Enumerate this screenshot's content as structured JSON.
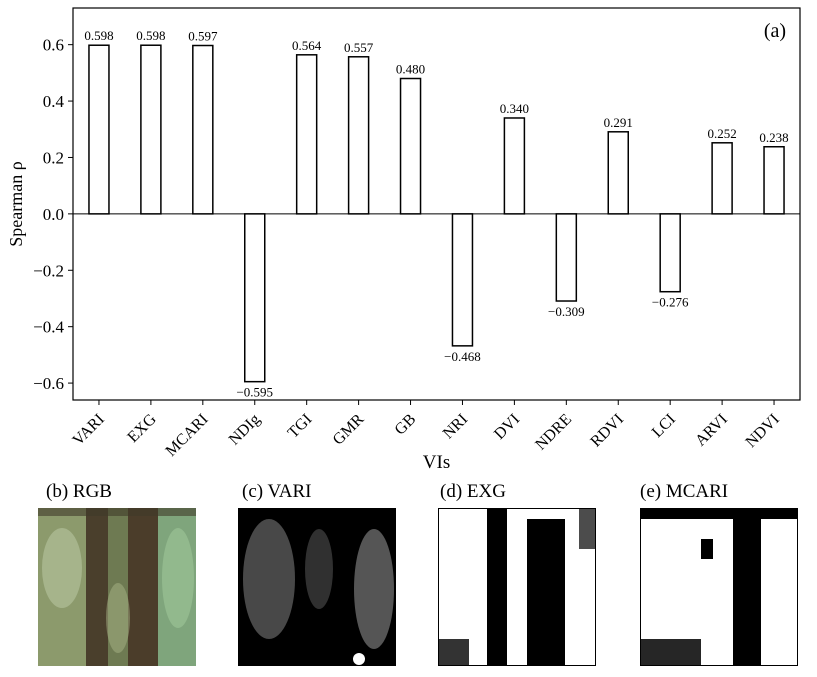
{
  "chart_data": {
    "type": "bar",
    "panel_label": "(a)",
    "xlabel": "VIs",
    "ylabel": "Spearman ρ",
    "ylim": [
      -0.66,
      0.73
    ],
    "yticks": [
      -0.6,
      -0.4,
      -0.2,
      0.0,
      0.2,
      0.4,
      0.6
    ],
    "ytick_labels": [
      "−0.6",
      "−0.4",
      "−0.2",
      "0.0",
      "0.2",
      "0.4",
      "0.6"
    ],
    "categories": [
      "VARI",
      "EXG",
      "MCARI",
      "NDIg",
      "TGI",
      "GMR",
      "GB",
      "NRI",
      "DVI",
      "NDRE",
      "RDVI",
      "LCI",
      "ARVI",
      "NDVI"
    ],
    "values": [
      0.598,
      0.598,
      0.597,
      -0.595,
      0.564,
      0.557,
      0.48,
      -0.468,
      0.34,
      -0.309,
      0.291,
      -0.276,
      0.252,
      0.238
    ],
    "value_labels": [
      "0.598",
      "0.598",
      "0.597",
      "−0.595",
      "0.564",
      "0.557",
      "0.480",
      "−0.468",
      "0.340",
      "−0.309",
      "0.291",
      "−0.276",
      "0.252",
      "0.238"
    ],
    "bar_fill": "#ffffff",
    "bar_edge": "#000000",
    "grid": false
  },
  "panels": [
    {
      "label": "(b) RGB"
    },
    {
      "label": "(c) VARI"
    },
    {
      "label": "(d) EXG"
    },
    {
      "label": "(e) MCARI"
    }
  ]
}
